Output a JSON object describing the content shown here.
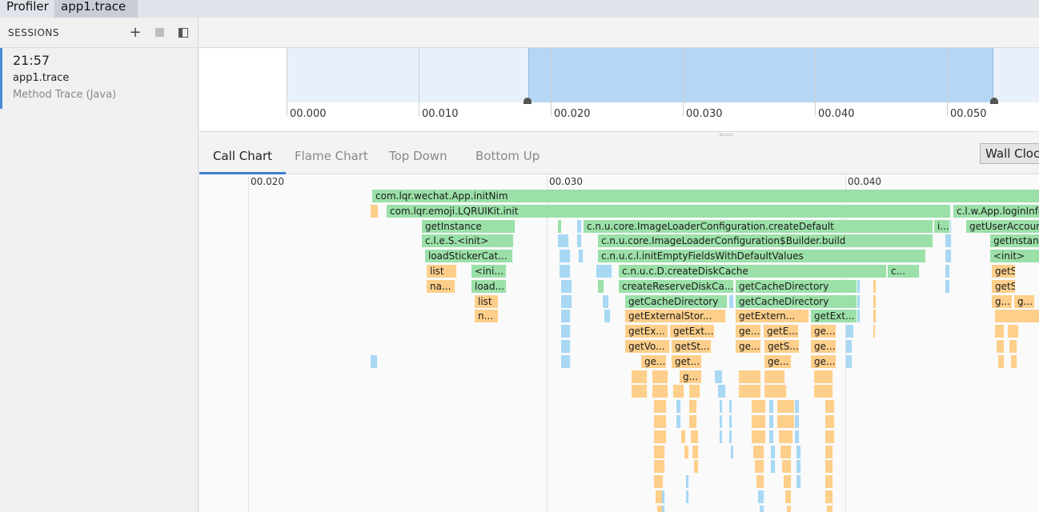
{
  "tabs_top": [
    "Profiler",
    "app1.trace"
  ],
  "sidebar": {
    "title": "SESSIONS",
    "session": {
      "time": "21:57",
      "name": "app1.trace",
      "type": "Method Trace (Java)"
    }
  },
  "overview": {
    "ticks": [
      "00.000",
      "00.010",
      "00.020",
      "00.030",
      "00.040",
      "00.050"
    ]
  },
  "tabs": [
    "Call Chart",
    "Flame Chart",
    "Top Down",
    "Bottom Up"
  ],
  "clock": "Wall Clock",
  "chart_ticks": [
    "00.020",
    "00.030",
    "00.040"
  ],
  "calls": [
    {
      "d": 0,
      "s": 216,
      "w": 840,
      "t": "com.lqr.wechat.App.initNim",
      "c": "g"
    },
    {
      "d": 1,
      "s": 234,
      "w": 705,
      "t": "com.lqr.emoji.LQRUIKit.init",
      "c": "g"
    },
    {
      "d": 1,
      "s": 942,
      "w": 110,
      "t": "c.l.w.App.loginInfo",
      "c": "g"
    },
    {
      "d": 2,
      "s": 278,
      "w": 117,
      "t": "getInstance",
      "c": "g"
    },
    {
      "d": 2,
      "s": 480,
      "w": 437,
      "t": "c.n.u.core.ImageLoaderConfiguration.createDefault",
      "c": "g"
    },
    {
      "d": 2,
      "s": 918,
      "w": 20,
      "t": "i...",
      "c": "g"
    },
    {
      "d": 2,
      "s": 958,
      "w": 94,
      "t": "getUserAccount",
      "c": "g"
    },
    {
      "d": 3,
      "s": 278,
      "w": 115,
      "t": "c.l.e.S.<init>",
      "c": "g"
    },
    {
      "d": 3,
      "s": 498,
      "w": 419,
      "t": "c.n.u.core.ImageLoaderConfiguration$Builder.build",
      "c": "g"
    },
    {
      "d": 3,
      "s": 988,
      "w": 64,
      "t": "getInstance",
      "c": "g"
    },
    {
      "d": 4,
      "s": 282,
      "w": 110,
      "t": "loadStickerCat...",
      "c": "g"
    },
    {
      "d": 4,
      "s": 498,
      "w": 410,
      "t": "c.n.u.c.l.initEmptyFieldsWithDefaultValues",
      "c": "g"
    },
    {
      "d": 4,
      "s": 988,
      "w": 64,
      "t": "<init>",
      "c": "g"
    },
    {
      "d": 5,
      "s": 284,
      "w": 38,
      "t": "list",
      "c": "o"
    },
    {
      "d": 5,
      "s": 340,
      "w": 44,
      "t": "<ini...",
      "c": "g"
    },
    {
      "d": 5,
      "s": 524,
      "w": 335,
      "t": "c.n.u.c.D.createDiskCache",
      "c": "g"
    },
    {
      "d": 5,
      "s": 860,
      "w": 40,
      "t": "c...",
      "c": "g"
    },
    {
      "d": 5,
      "s": 990,
      "w": 30,
      "t": "getSh...",
      "c": "o"
    },
    {
      "d": 6,
      "s": 284,
      "w": 36,
      "t": "na...",
      "c": "o"
    },
    {
      "d": 6,
      "s": 340,
      "w": 44,
      "t": "load...",
      "c": "g"
    },
    {
      "d": 6,
      "s": 524,
      "w": 144,
      "t": "createReserveDiskCa...",
      "c": "g"
    },
    {
      "d": 6,
      "s": 670,
      "w": 152,
      "t": "getCacheDirectory",
      "c": "g"
    },
    {
      "d": 6,
      "s": 990,
      "w": 30,
      "t": "getSh...",
      "c": "o"
    },
    {
      "d": 7,
      "s": 344,
      "w": 30,
      "t": "list",
      "c": "o"
    },
    {
      "d": 7,
      "s": 532,
      "w": 128,
      "t": "getCacheDirectory",
      "c": "g"
    },
    {
      "d": 7,
      "s": 670,
      "w": 152,
      "t": "getCacheDirectory",
      "c": "g"
    },
    {
      "d": 7,
      "s": 990,
      "w": 26,
      "t": "g...",
      "c": "o"
    },
    {
      "d": 7,
      "s": 1018,
      "w": 26,
      "t": "g...",
      "c": "o"
    },
    {
      "d": 8,
      "s": 344,
      "w": 30,
      "t": "n...",
      "c": "o"
    },
    {
      "d": 8,
      "s": 532,
      "w": 126,
      "t": "getExternalStor...",
      "c": "o"
    },
    {
      "d": 8,
      "s": 670,
      "w": 92,
      "t": "getExtern...",
      "c": "o"
    },
    {
      "d": 8,
      "s": 764,
      "w": 58,
      "t": "getExt...",
      "c": "g"
    },
    {
      "d": 9,
      "s": 532,
      "w": 54,
      "t": "getEx...",
      "c": "o"
    },
    {
      "d": 9,
      "s": 588,
      "w": 56,
      "t": "getExt...",
      "c": "o"
    },
    {
      "d": 9,
      "s": 670,
      "w": 32,
      "t": "ge...",
      "c": "o"
    },
    {
      "d": 9,
      "s": 705,
      "w": 44,
      "t": "getE...",
      "c": "o"
    },
    {
      "d": 9,
      "s": 764,
      "w": 32,
      "t": "ge...",
      "c": "o"
    },
    {
      "d": 10,
      "s": 532,
      "w": 56,
      "t": "getVo...",
      "c": "o"
    },
    {
      "d": 10,
      "s": 590,
      "w": 50,
      "t": "getSt...",
      "c": "o"
    },
    {
      "d": 10,
      "s": 670,
      "w": 32,
      "t": "ge...",
      "c": "o"
    },
    {
      "d": 10,
      "s": 706,
      "w": 44,
      "t": "getS...",
      "c": "o"
    },
    {
      "d": 10,
      "s": 764,
      "w": 32,
      "t": "ge...",
      "c": "o"
    },
    {
      "d": 11,
      "s": 552,
      "w": 32,
      "t": "ge...",
      "c": "o"
    },
    {
      "d": 11,
      "s": 590,
      "w": 38,
      "t": "get...",
      "c": "o"
    },
    {
      "d": 11,
      "s": 706,
      "w": 34,
      "t": "ge...",
      "c": "o"
    },
    {
      "d": 11,
      "s": 764,
      "w": 32,
      "t": "ge...",
      "c": "o"
    },
    {
      "d": 12,
      "s": 600,
      "w": 28,
      "t": "g...",
      "c": "o"
    }
  ]
}
